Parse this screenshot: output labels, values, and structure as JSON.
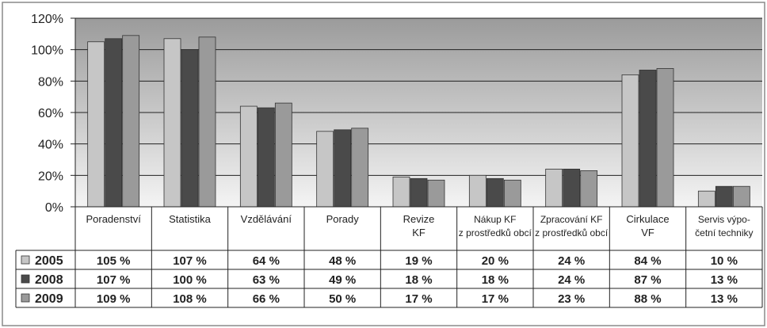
{
  "chart_data": {
    "type": "bar",
    "categories": [
      [
        "Poradenství"
      ],
      [
        "Statistika"
      ],
      [
        "Vzdělávání"
      ],
      [
        "Porady"
      ],
      [
        "Revize",
        "KF"
      ],
      [
        "Nákup KF",
        "z prostředků obcí"
      ],
      [
        "Zpracování KF",
        "z prostředků obcí"
      ],
      [
        "Cirkulace",
        "VF"
      ],
      [
        "Servis výpo-",
        "četní techniky"
      ]
    ],
    "series": [
      {
        "name": "2005",
        "values": [
          105,
          107,
          64,
          48,
          19,
          20,
          24,
          84,
          10
        ],
        "labels": [
          "105 %",
          "107 %",
          "64 %",
          "48 %",
          "19 %",
          "20 %",
          "24 %",
          "84 %",
          "10 %"
        ],
        "color": "#c6c6c6"
      },
      {
        "name": "2008",
        "values": [
          107,
          100,
          63,
          49,
          18,
          18,
          24,
          87,
          13
        ],
        "labels": [
          "107 %",
          "100 %",
          "63 %",
          "49 %",
          "18 %",
          "18 %",
          "24 %",
          "87 %",
          "13 %"
        ],
        "color": "#4a4a4a"
      },
      {
        "name": "2009",
        "values": [
          109,
          108,
          66,
          50,
          17,
          17,
          23,
          88,
          13
        ],
        "labels": [
          "109 %",
          "108 %",
          "66 %",
          "50 %",
          "17 %",
          "17 %",
          "23 %",
          "88 %",
          "13 %"
        ],
        "color": "#9a9a9a"
      }
    ],
    "yticks": [
      "0%",
      "20%",
      "40%",
      "60%",
      "80%",
      "100%",
      "120%"
    ],
    "ylim": [
      0,
      120
    ],
    "grid": true,
    "legend": "table-left"
  }
}
